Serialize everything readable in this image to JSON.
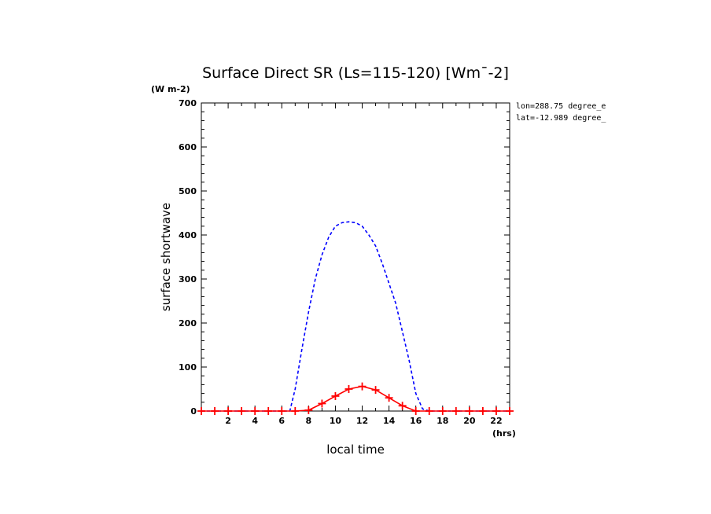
{
  "chart_data": {
    "type": "line",
    "title": "Surface Direct SR (Ls=115-120) [Wm¯-2]",
    "xlabel": "local time",
    "ylabel": "surface shortwave",
    "x_unit": "(hrs)",
    "y_unit": "(W m-2)",
    "xlim": [
      0,
      23
    ],
    "ylim": [
      0,
      700
    ],
    "x_ticks": [
      2,
      4,
      6,
      8,
      10,
      12,
      14,
      16,
      18,
      20,
      22
    ],
    "y_ticks": [
      0,
      100,
      200,
      300,
      400,
      500,
      600,
      700
    ],
    "grid": false,
    "annotations": [
      "lon=288.75 degree_e",
      "lat=-12.989 degree_"
    ],
    "series": [
      {
        "style": "dashed",
        "color": "#0000ff",
        "x": [
          0,
          1,
          2,
          3,
          4,
          5,
          6,
          6.6,
          7,
          7.5,
          8,
          8.5,
          9,
          9.5,
          10,
          10.5,
          11,
          11.5,
          12,
          12.5,
          13,
          13.5,
          14,
          14.5,
          15,
          15.5,
          16,
          16.5,
          17,
          17.5,
          18,
          19,
          20,
          21,
          22,
          23
        ],
        "y": [
          0,
          0,
          0,
          0,
          0,
          0,
          0,
          0,
          50,
          140,
          225,
          300,
          355,
          395,
          420,
          428,
          430,
          428,
          420,
          400,
          375,
          335,
          290,
          245,
          180,
          115,
          40,
          5,
          0,
          0,
          0,
          0,
          0,
          0,
          0,
          0
        ]
      },
      {
        "style": "solid",
        "marker": "plus",
        "color": "#ff0000",
        "x": [
          0,
          1,
          2,
          3,
          4,
          5,
          6,
          7,
          8,
          9,
          10,
          11,
          12,
          13,
          14,
          15,
          16,
          17,
          18,
          19,
          20,
          21,
          22,
          23
        ],
        "y": [
          0,
          0,
          0,
          0,
          0,
          0,
          0,
          0,
          2,
          17,
          34,
          50,
          56,
          48,
          30,
          12,
          0,
          0,
          0,
          0,
          0,
          0,
          0,
          0
        ]
      }
    ]
  }
}
